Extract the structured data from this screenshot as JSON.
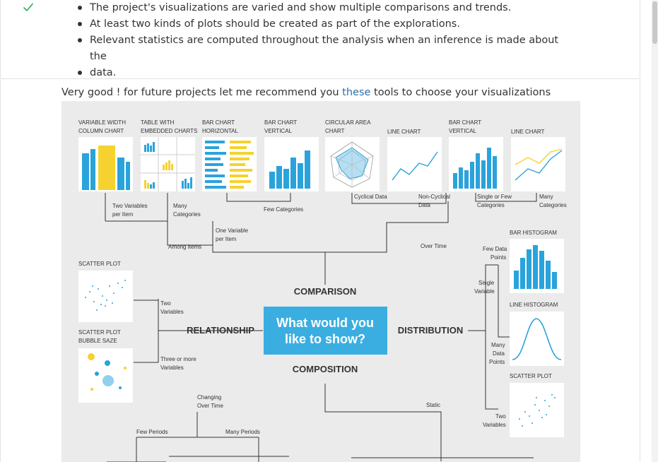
{
  "criteria": {
    "status_icon": "check-icon",
    "status_color": "#2eaa62",
    "bullets": [
      "The project's visualizations are varied and show multiple comparisons and trends.",
      "At least two kinds of plots should be created as part of the explorations.",
      "Relevant statistics are computed throughout the analysis when an inference is made about the",
      "data."
    ]
  },
  "review": {
    "prefix": "Very good ! for future projects let me recommend you ",
    "link_text": "these",
    "suffix": " tools to choose your visualizations"
  },
  "chart_guide": {
    "center_question": [
      "What would you",
      "like to show?"
    ],
    "center_color": "#3aaee0",
    "accent_color": "#1fa0d8",
    "yellow_color": "#f5d230",
    "branches": {
      "comparison": "COMPARISON",
      "relationship": "RELATIONSHIP",
      "distribution": "DISTRIBUTION",
      "composition": "COMPOSITION"
    },
    "top_charts": [
      [
        "VARIABLE WIDTH",
        "COLUMN CHART"
      ],
      [
        "TABLE WITH",
        "EMBEDDED CHARTS"
      ],
      [
        "BAR CHART",
        "HORIZONTAL"
      ],
      [
        "BAR CHART",
        "VERTICAL"
      ],
      [
        "CIRCULAR AREA",
        "CHART"
      ],
      [
        "LINE CHART"
      ],
      [
        "BAR CHART",
        "VERTICAL"
      ],
      [
        "LINE CHART"
      ]
    ],
    "labels": {
      "two_variables_per_item": [
        "Two Variables",
        "per Item"
      ],
      "many_categories": [
        "Many",
        "Categories"
      ],
      "few_categories": "Few Categories",
      "cyclical_data": "Cyclical Data",
      "non_cyclical_data": [
        "Non-Cyclical",
        "Data"
      ],
      "single_or_few_categories": [
        "Single or Few",
        "Categories"
      ],
      "many_categories_right": [
        "Many",
        "Categories"
      ],
      "one_variable_per_item": [
        "One Variable",
        "per Item"
      ],
      "among_items": "Among Items",
      "over_time": "Over Time",
      "bar_histogram": "BAR HISTOGRAM",
      "few_data_points": [
        "Few Data",
        "Points"
      ],
      "scatter_plot": "SCATTER PLOT",
      "single_variable": [
        "Single",
        "Variable"
      ],
      "line_histogram": "LINE HISTOGRAM",
      "two_variables": [
        "Two",
        "Variables"
      ],
      "scatter_plot_bubble": [
        "SCATTER PLOT",
        "BUBBLE SAZE"
      ],
      "many_data_points": [
        "Many",
        "Data",
        "Points"
      ],
      "three_or_more_variables": [
        "Three or more",
        "Variables"
      ],
      "scatter_plot_right": "SCATTER PLOT",
      "changing_over_time": [
        "Changing",
        "Over Time"
      ],
      "static": "Static",
      "two_variables_right": [
        "Two",
        "Variables"
      ],
      "few_periods": "Few Periods",
      "many_periods": "Many Periods"
    }
  }
}
